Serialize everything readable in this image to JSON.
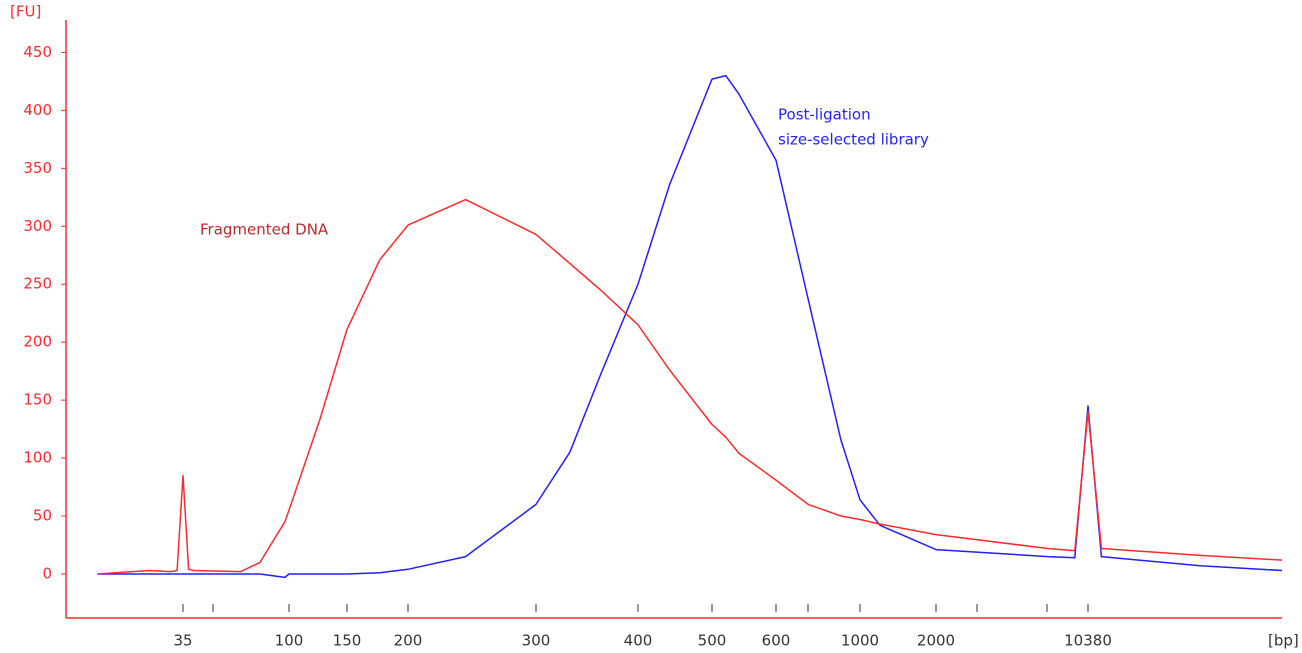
{
  "chart_data": {
    "type": "line",
    "y_label": "[FU]",
    "x_label": "[bp]",
    "annotations": [
      {
        "lines": [
          "Fragmented DNA"
        ],
        "color": "#c0282a"
      },
      {
        "lines": [
          "Post-ligation",
          "size-selected library"
        ],
        "color": "#2323ff"
      }
    ],
    "x": [
      15,
      25,
      31,
      33,
      35,
      37,
      39,
      62,
      75,
      96,
      100,
      124,
      150,
      175,
      200,
      240,
      300,
      330,
      360,
      400,
      440,
      500,
      520,
      540,
      600,
      730,
      890,
      1000,
      1200,
      2000,
      6700,
      9000,
      10380,
      12000,
      35000,
      85000
    ],
    "series": [
      {
        "name": "Post-ligation size-selected library",
        "color": "#2020ff",
        "values": [
          0,
          0,
          0,
          0,
          0,
          0,
          0,
          0,
          0,
          -3,
          0,
          0,
          0,
          1,
          4,
          15,
          60,
          105,
          172,
          250,
          336,
          427,
          430,
          414,
          357,
          237,
          116,
          64,
          42,
          21,
          15,
          14,
          145,
          15,
          7,
          3
        ]
      },
      {
        "name": "Fragmented DNA",
        "color": "#ff2a2a",
        "values": [
          0,
          3,
          2,
          3,
          85,
          4,
          3,
          2,
          10,
          45,
          55,
          133,
          211,
          271,
          301,
          323,
          293,
          268,
          245,
          215,
          176,
          129,
          118,
          104,
          81,
          60,
          50,
          47,
          43,
          34,
          22,
          20,
          140,
          22,
          16,
          12
        ]
      }
    ],
    "xlim": [
      11,
      85000
    ],
    "xticks": [
      35,
      100,
      150,
      200,
      300,
      400,
      500,
      600,
      1000,
      2000,
      10380
    ],
    "ylim": [
      -38,
      478
    ],
    "yticks": [
      0,
      50,
      100,
      150,
      200,
      250,
      300,
      350,
      400,
      450
    ],
    "axis_color": "#ff2a2a"
  }
}
